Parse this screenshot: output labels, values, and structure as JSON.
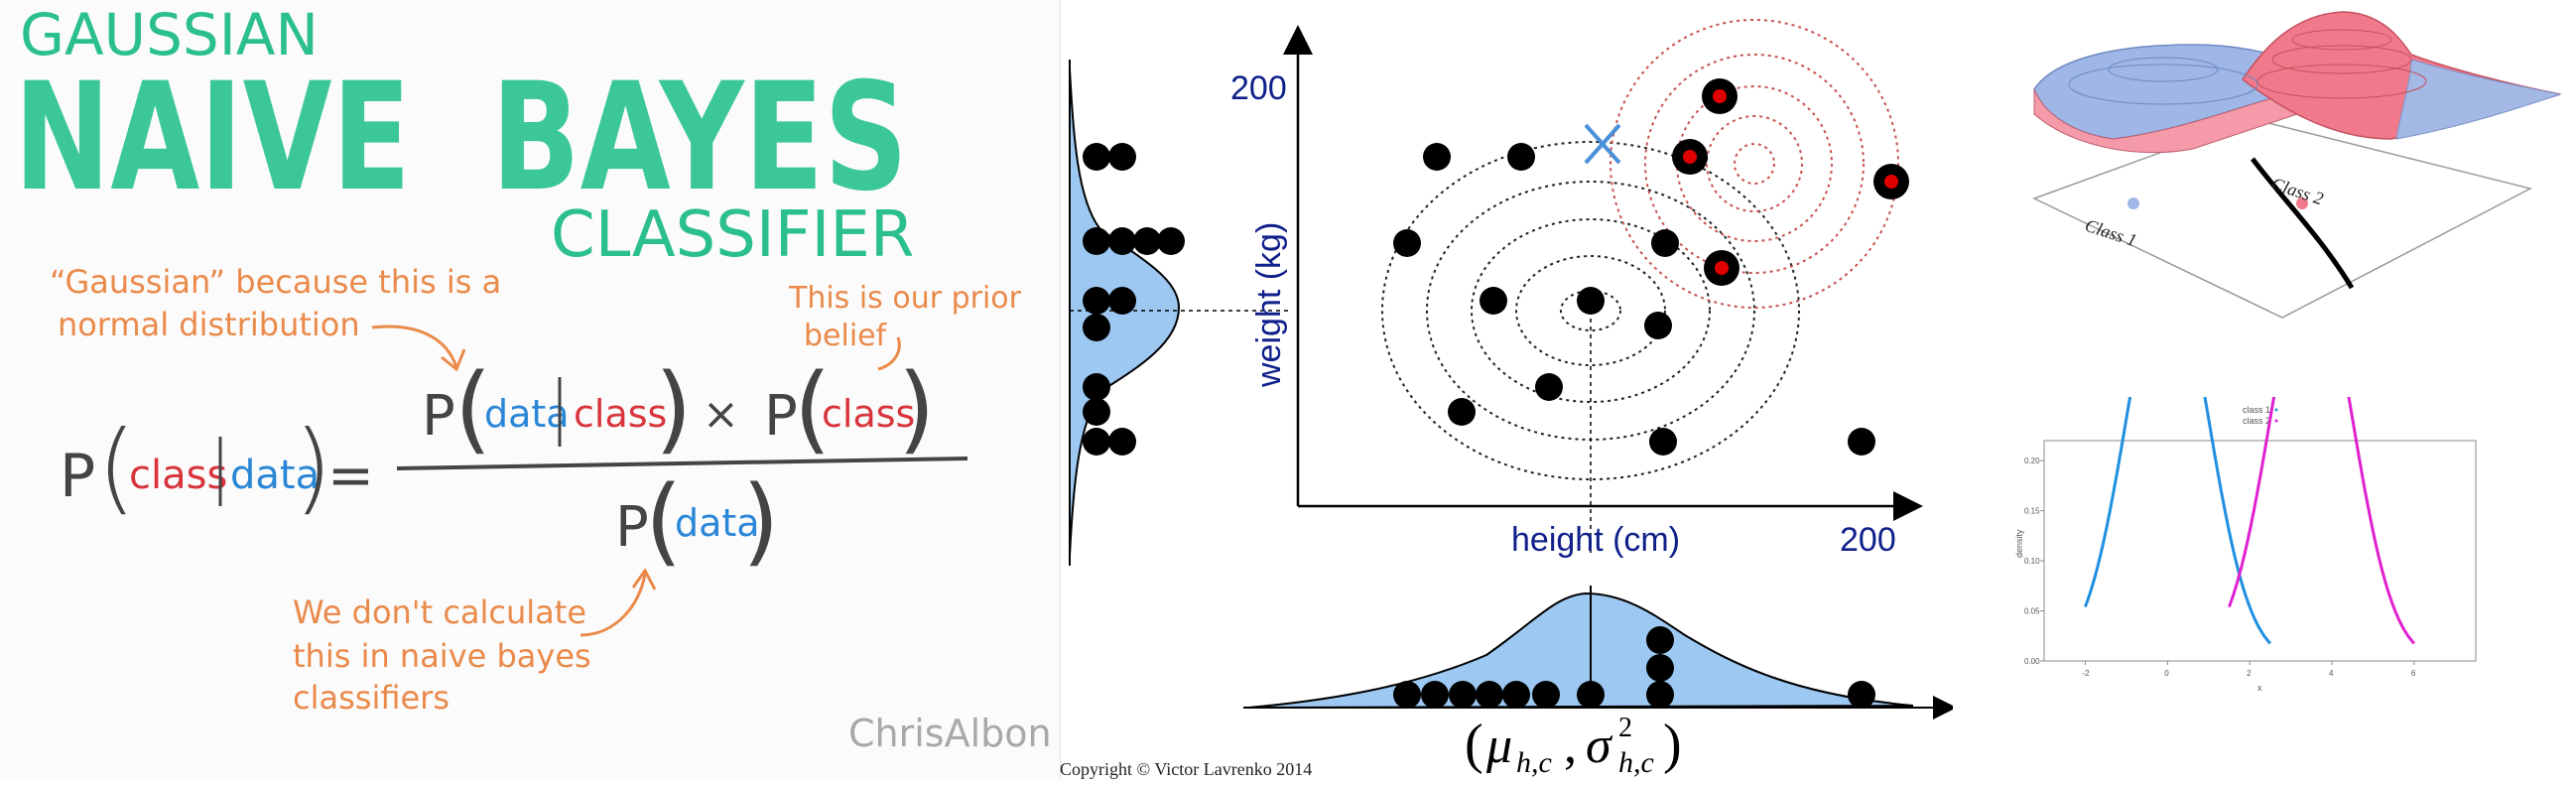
{
  "sketch": {
    "title_line1": "GAUSSIAN",
    "title_line2": "NAIVE BAYES",
    "title_line3": "CLASSIFIER",
    "note_gaussian_1": "“Gaussian” because this is a",
    "note_gaussian_2": "normal distribution",
    "note_prior_1": "This is our prior",
    "note_prior_2": "belief",
    "formula": {
      "p": "P",
      "class": "class",
      "data": "data",
      "times": "×",
      "equals": "="
    },
    "note_denominator_1": "We don't calculate",
    "note_denominator_2": "this in naive bayes",
    "note_denominator_3": "classifiers",
    "signature": "ChrisAlbon"
  },
  "scatter": {
    "y_tick_200": "200",
    "x_tick_200": "200",
    "xlabel": "height (cm)",
    "ylabel": "weight (kg)",
    "params_label": "(μ h,c , σ² h,c)",
    "credit": "Copyright © Victor Lavrenko 2014",
    "colors": {
      "axis": "#10208a",
      "fill": "#9cc8f2",
      "point": "#000000",
      "highlight": "#e00000"
    }
  },
  "density": {
    "legend_1": "class 1",
    "legend_2": "class 2",
    "y_ticks": [
      "0.20",
      "0.15",
      "0.10",
      "0.05",
      "0.00"
    ],
    "x_ticks": [
      "-2",
      "0",
      "2",
      "4",
      "6"
    ],
    "ylabel": "density",
    "xlabel": "x",
    "colors": {
      "class1": "#1f8fe0",
      "class2": "#e020d0"
    }
  },
  "surface3d": {
    "label_class1": "Class 1",
    "label_class2": "Class 2",
    "colors": {
      "class1": "#9fb7e6",
      "class2": "#f07a8c"
    }
  }
}
